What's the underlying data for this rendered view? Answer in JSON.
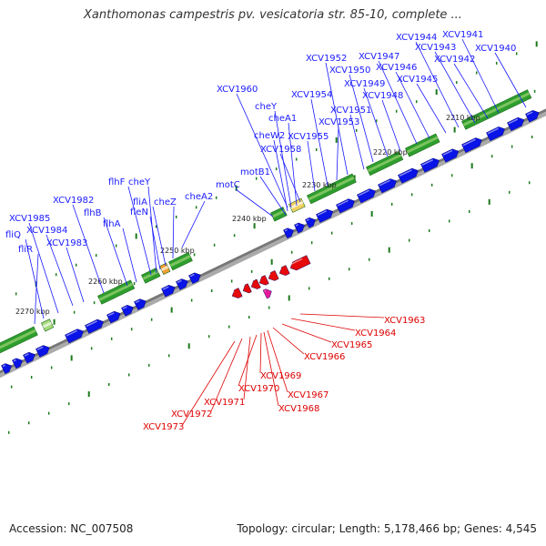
{
  "title": "Xanthomonas campestris pv. vesicatoria str. 85-10, complete ...",
  "footer": {
    "accession": "Accession: NC_007508",
    "stats": "Topology: circular; Length: 5,178,466 bp; Genes: 4,545"
  },
  "colors": {
    "forward_gene": "#0a14e6",
    "reverse_gene": "#e60a0a",
    "forward_label": "#1a1aff",
    "reverse_label": "#dd0000",
    "pink_gene": "#e61a9a",
    "backbone": "#777777",
    "tick": "#1a7a1a",
    "cluster_green": "#2e9e2e",
    "cluster_light": "#a6d97a",
    "cluster_yellow": "#f0d060",
    "cluster_orange": "#f0a030"
  },
  "scale_labels": [
    "2210 kbp",
    "2220 kbp",
    "2230 kbp",
    "2240 kbp",
    "2250 kbp",
    "2260 kbp",
    "2270 kbp"
  ],
  "forward_genes": [
    "XCV1940",
    "XCV1941",
    "XCV1942",
    "XCV1943",
    "XCV1944",
    "XCV1945",
    "XCV1946",
    "XCV1947",
    "XCV1948",
    "XCV1949",
    "XCV1950",
    "XCV1951",
    "XCV1952",
    "XCV1953",
    "XCV1954",
    "XCV1955",
    "XCV1958",
    "XCV1960",
    "cheY",
    "cheA1",
    "cheW2",
    "motB1",
    "motC",
    "cheA2",
    "cheZ",
    "fliA",
    "fleN",
    "flhF",
    "cheY",
    "flhA",
    "flhB",
    "XCV1982",
    "XCV1983",
    "XCV1984",
    "XCV1985",
    "fliQ",
    "fliR"
  ],
  "reverse_genes": [
    "XCV1963",
    "XCV1964",
    "XCV1965",
    "XCV1966",
    "XCV1967",
    "XCV1968",
    "XCV1969",
    "XCV1970",
    "XCV1971",
    "XCV1972",
    "XCV1973"
  ]
}
